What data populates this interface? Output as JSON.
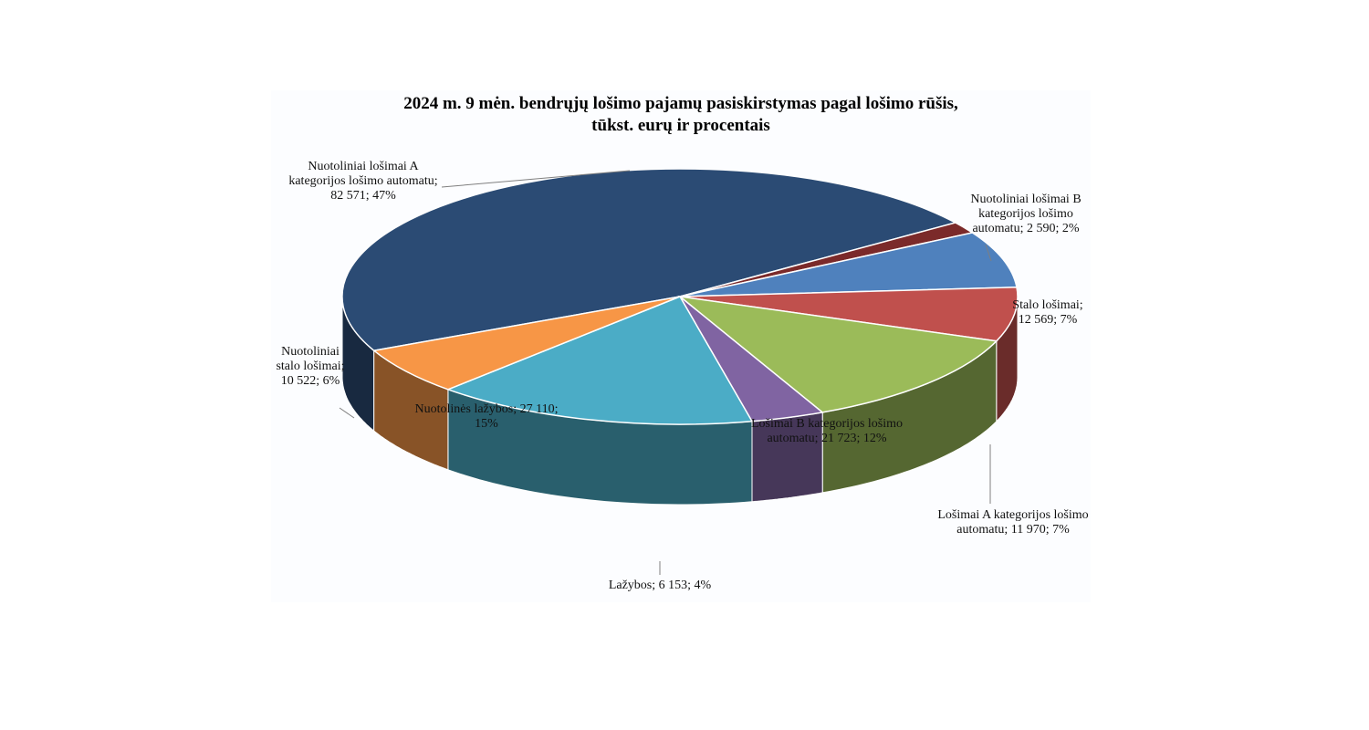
{
  "chart_data": {
    "type": "pie",
    "title_lines": [
      "2024 m. 9 mėn. bendrųjų lošimo pajamų pasiskirstymas  pagal lošimo rūšis,",
      "tūkst. eurų ir procentais"
    ],
    "series": [
      {
        "name": "Nuotoliniai lošimai A kategorijos lošimo automatu",
        "value": 82571,
        "percent": 47,
        "color": "#2b4b74",
        "label_lines": [
          "Nuotoliniai lošimai A",
          "kategorijos lošimo automatu;",
          "82 571; 47%"
        ]
      },
      {
        "name": "Nuotoliniai lošimai B kategorijos lošimo automatu",
        "value": 2590,
        "percent": 2,
        "color": "#7b2a2a",
        "label_lines": [
          "Nuotoliniai lošimai B",
          "kategorijos lošimo",
          "automatu; 2 590; 2%"
        ]
      },
      {
        "name": "Stalo lošimai",
        "value": 12569,
        "percent": 7,
        "color": "#4f81bd",
        "label_lines": [
          "Stalo lošimai;",
          "12 569; 7%"
        ]
      },
      {
        "name": "Lošimai A kategorijos lošimo automatu",
        "value": 11970,
        "percent": 7,
        "color": "#c0504d",
        "label_lines": [
          "Lošimai A  kategorijos lošimo",
          "automatu; 11 970; 7%"
        ]
      },
      {
        "name": "Lošimai B kategorijos lošimo automatu",
        "value": 21723,
        "percent": 12,
        "color": "#9bbb59",
        "label_lines": [
          "Lošimai B kategorijos lošimo",
          "automatu; 21 723; 12%"
        ]
      },
      {
        "name": "Lažybos",
        "value": 6153,
        "percent": 4,
        "color": "#8064a2",
        "label_lines": [
          "Lažybos;  6 153; 4%"
        ]
      },
      {
        "name": "Nuotolinės lažybos",
        "value": 27110,
        "percent": 15,
        "color": "#4bacc6",
        "label_lines": [
          "Nuotolinės lažybos;  27 110;",
          "15%"
        ]
      },
      {
        "name": "Nuotoliniai stalo lošimai",
        "value": 10522,
        "percent": 6,
        "color": "#f79646",
        "label_lines": [
          "Nuotoliniai",
          "stalo lošimai;",
          "10 522; 6%"
        ]
      }
    ],
    "start_angle_deg": 205,
    "direction": "clockwise",
    "style": "3d-tilted",
    "legend": "none"
  }
}
